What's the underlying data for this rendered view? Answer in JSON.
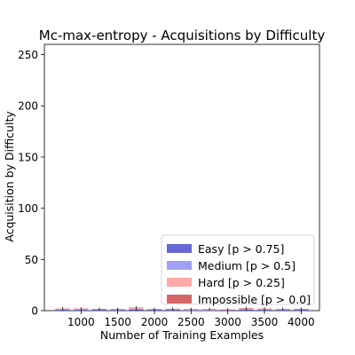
{
  "chart_data": {
    "type": "bar",
    "stacked": true,
    "title": "Mc-max-entropy - Acquisitions by Difficulty",
    "xlabel": "Number of Training Examples",
    "ylabel": "Acquisition by Difficulty",
    "xlim": [
      500,
      4250
    ],
    "ylim": [
      0,
      260
    ],
    "xticks": [
      1000,
      1500,
      2000,
      2500,
      3000,
      3500,
      4000
    ],
    "yticks": [
      0,
      50,
      100,
      150,
      200,
      250
    ],
    "legend_position": "bottom-right",
    "x": [
      750,
      1000,
      1250,
      1500,
      1750,
      2000,
      2250,
      2500,
      2750,
      3000,
      3250,
      3500,
      3750,
      4000
    ],
    "series": [
      {
        "name": "Easy [p > 0.75]",
        "color": "#3434c8",
        "values": [
          0.5,
          0.5,
          0.5,
          0.4,
          1.0,
          0.5,
          0.5,
          0.3,
          0.3,
          0.3,
          0.8,
          0.5,
          0.4,
          0.5
        ]
      },
      {
        "name": "Medium [p > 0.5]",
        "color": "#8080f4",
        "values": [
          0.5,
          0.5,
          0.5,
          0.4,
          0.8,
          0.4,
          0.5,
          0.3,
          0.3,
          0.3,
          0.6,
          0.5,
          0.4,
          0.5
        ]
      },
      {
        "name": "Hard [p > 0.25]",
        "color": "#ff8c8c",
        "values": [
          0.6,
          0.6,
          0.4,
          0.4,
          0.7,
          0.4,
          0.5,
          0.5,
          0.5,
          0.3,
          0.6,
          0.6,
          0.5,
          0.4
        ]
      },
      {
        "name": "Impossible [p > 0.0]",
        "color": "#c83232",
        "values": [
          0.4,
          0.4,
          0.3,
          0.3,
          0.5,
          0.2,
          0.3,
          0.4,
          0.4,
          0.2,
          0.5,
          0.4,
          0.3,
          0.3
        ]
      }
    ]
  }
}
